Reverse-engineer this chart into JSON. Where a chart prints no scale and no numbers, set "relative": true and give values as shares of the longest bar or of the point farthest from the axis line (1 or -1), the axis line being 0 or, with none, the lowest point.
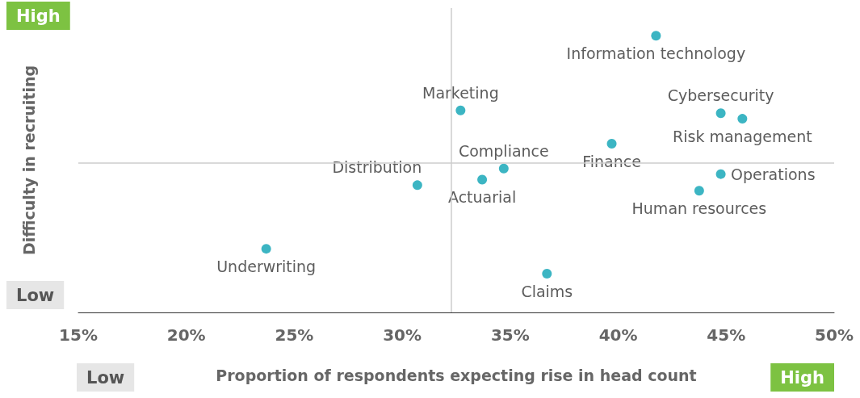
{
  "chart_data": {
    "type": "scatter",
    "xlabel": "Proportion of respondents expecting rise in head count",
    "ylabel": "Difficulty in recruiting",
    "relative": true,
    "xlim": [
      15,
      50
    ],
    "xticks": [
      {
        "value": 15,
        "label": "15%"
      },
      {
        "value": 20,
        "label": "20%"
      },
      {
        "value": 25,
        "label": "25%"
      },
      {
        "value": 30,
        "label": "30%"
      },
      {
        "value": 35,
        "label": "35%"
      },
      {
        "value": 40,
        "label": "40%"
      },
      {
        "value": 45,
        "label": "45%"
      },
      {
        "value": 50,
        "label": "50%"
      }
    ],
    "grid": false,
    "marker": "circle",
    "series": [
      {
        "color": "#0ba3b4",
        "x": [
          41.75,
          32.7,
          44.75,
          45.75,
          34.7,
          39.7,
          30.7,
          33.7,
          44.75,
          43.75,
          23.7,
          36.7
        ],
        "values": [
          1,
          0.73,
          0.72,
          0.7,
          0.52,
          0.61,
          0.46,
          0.48,
          0.5,
          0.44,
          0.23,
          0.14
        ]
      }
    ],
    "ref_lines": [
      {
        "axis": "x",
        "value": 32.25,
        "color": "#cccccc"
      },
      {
        "axis": "y",
        "value": 0.54,
        "color": "#cccccc"
      }
    ],
    "annotations": [
      {
        "text": "Information technology",
        "x": 41.75,
        "y": 1
      },
      {
        "text": "Marketing",
        "x": 32.7,
        "y": 0.73
      },
      {
        "text": "Cybersecurity",
        "x": 44.75,
        "y": 0.72
      },
      {
        "text": "Risk management",
        "x": 45.75,
        "y": 0.7
      },
      {
        "text": "Compliance",
        "x": 34.7,
        "y": 0.52
      },
      {
        "text": "Finance",
        "x": 39.7,
        "y": 0.61
      },
      {
        "text": "Distribution",
        "x": 30.7,
        "y": 0.46
      },
      {
        "text": "Actuarial",
        "x": 33.7,
        "y": 0.48
      },
      {
        "text": "Operations",
        "x": 44.75,
        "y": 0.5
      },
      {
        "text": "Human resources",
        "x": 43.75,
        "y": 0.44
      },
      {
        "text": "Underwriting",
        "x": 23.7,
        "y": 0.23
      },
      {
        "text": "Claims",
        "x": 36.7,
        "y": 0.14
      },
      "High",
      "Low",
      "Low",
      "High"
    ]
  }
}
